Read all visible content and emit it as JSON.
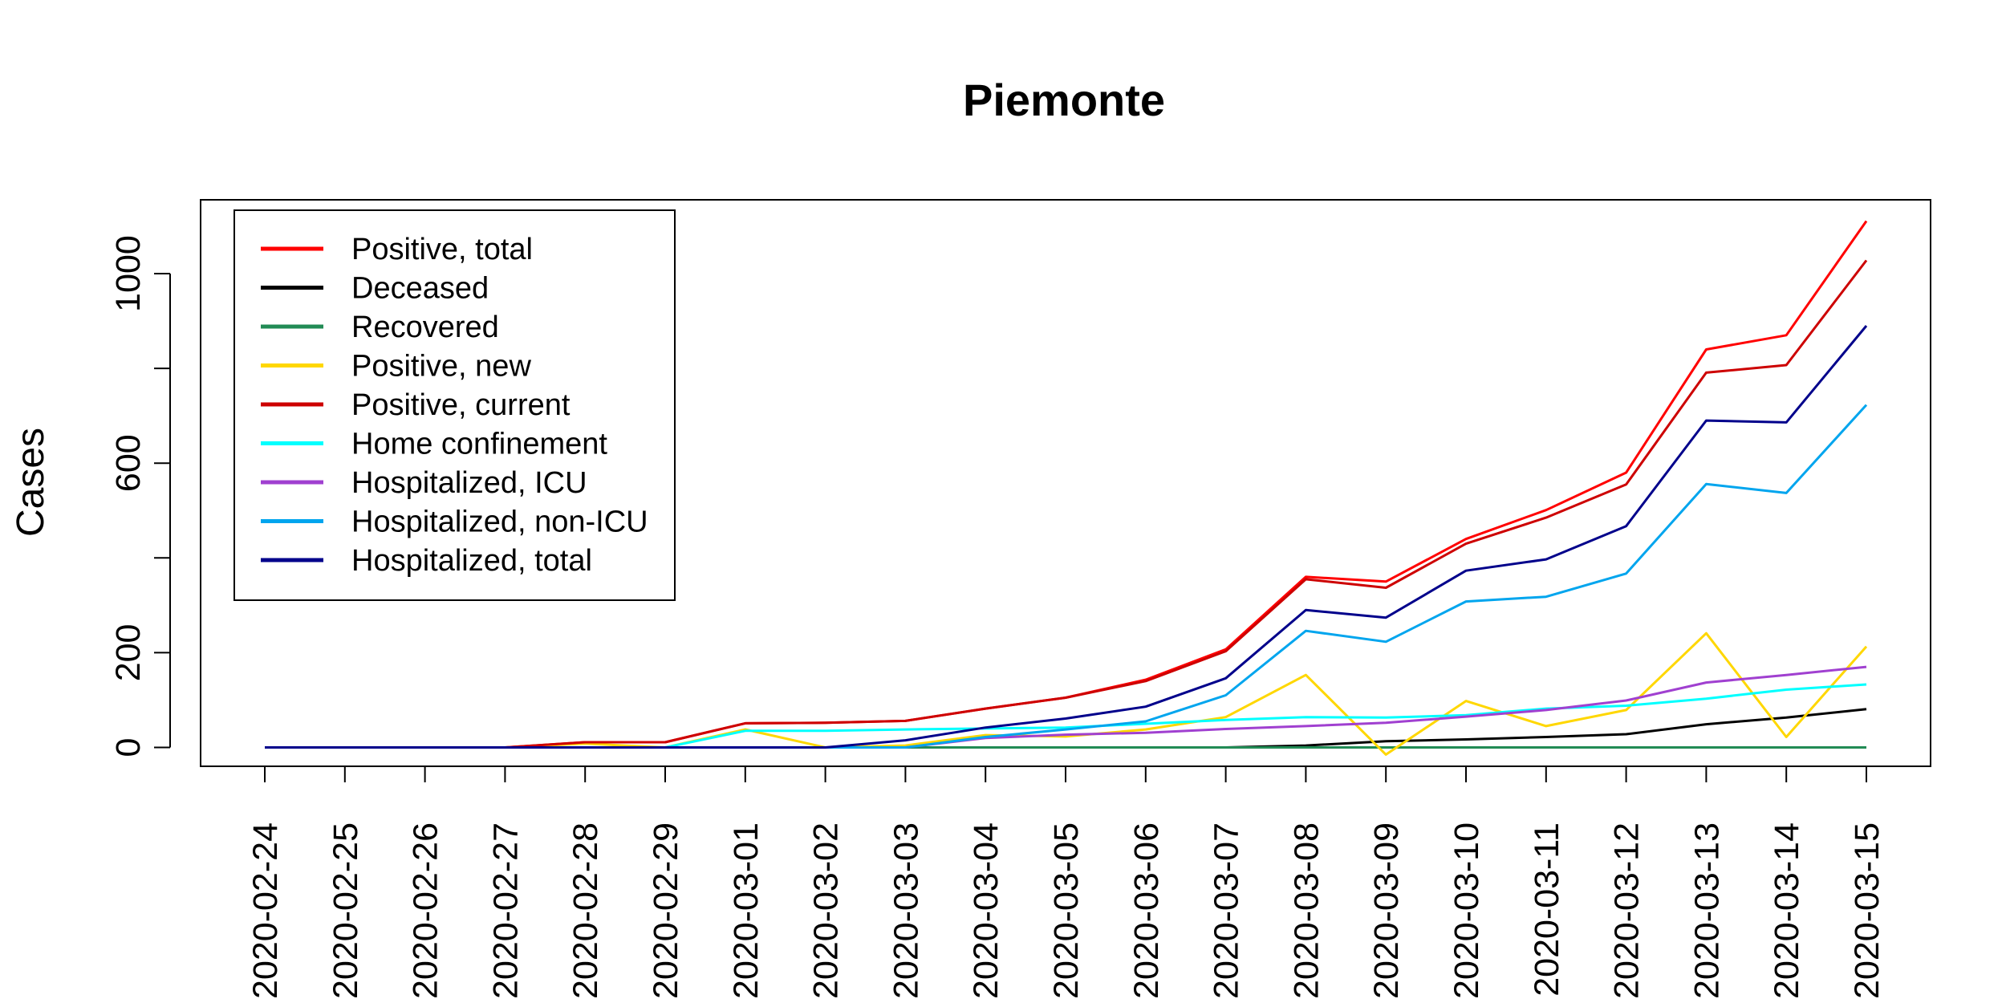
{
  "chart_data": {
    "type": "line",
    "title": "Piemonte",
    "xlabel": "",
    "ylabel": "Cases",
    "x": [
      "2020-02-24",
      "2020-02-25",
      "2020-02-26",
      "2020-02-27",
      "2020-02-28",
      "2020-02-29",
      "2020-03-01",
      "2020-03-02",
      "2020-03-03",
      "2020-03-04",
      "2020-03-05",
      "2020-03-06",
      "2020-03-07",
      "2020-03-08",
      "2020-03-09",
      "2020-03-10",
      "2020-03-11",
      "2020-03-12",
      "2020-03-13",
      "2020-03-14",
      "2020-03-15"
    ],
    "ylim": [
      -40,
      1120
    ],
    "yticks": [
      0,
      200,
      600,
      1000
    ],
    "grid": false,
    "legend_position": "top-left",
    "series": [
      {
        "name": "Positive, total",
        "color": "#ff0000",
        "values": [
          0,
          0,
          0,
          0,
          11,
          11,
          51,
          52,
          56,
          82,
          105,
          143,
          207,
          360,
          350,
          440,
          501,
          580,
          840,
          870,
          1111
        ]
      },
      {
        "name": "Deceased",
        "color": "#000000",
        "values": [
          0,
          0,
          0,
          0,
          0,
          0,
          0,
          0,
          0,
          0,
          0,
          0,
          0,
          4,
          13,
          17,
          22,
          28,
          49,
          63,
          81
        ]
      },
      {
        "name": "Recovered",
        "color": "#228b55",
        "values": [
          0,
          0,
          0,
          0,
          0,
          0,
          0,
          0,
          0,
          0,
          0,
          0,
          0,
          0,
          0,
          0,
          0,
          0,
          0,
          0,
          0
        ]
      },
      {
        "name": "Positive, new",
        "color": "#ffd700",
        "values": [
          0,
          0,
          0,
          0,
          8,
          0,
          38,
          0,
          4,
          26,
          23,
          38,
          64,
          153,
          -15,
          98,
          45,
          79,
          241,
          22,
          213
        ]
      },
      {
        "name": "Positive, current",
        "color": "#cd0000",
        "values": [
          0,
          0,
          0,
          0,
          11,
          11,
          51,
          52,
          56,
          82,
          105,
          140,
          203,
          355,
          337,
          430,
          485,
          555,
          791,
          807,
          1028
        ]
      },
      {
        "name": "Home confinement",
        "color": "#00ffff",
        "values": [
          0,
          0,
          0,
          0,
          0,
          0,
          35,
          35,
          38,
          40,
          42,
          50,
          58,
          64,
          63,
          68,
          82,
          88,
          103,
          122,
          133
        ]
      },
      {
        "name": "Hospitalized, ICU",
        "color": "#a040d0",
        "values": [
          0,
          0,
          0,
          0,
          0,
          0,
          0,
          0,
          0,
          20,
          27,
          31,
          39,
          45,
          52,
          65,
          79,
          99,
          137,
          153,
          170
        ]
      },
      {
        "name": "Hospitalized, non-ICU",
        "color": "#00a5ee",
        "values": [
          0,
          0,
          0,
          0,
          0,
          0,
          0,
          0,
          0,
          22,
          38,
          55,
          110,
          246,
          223,
          308,
          318,
          367,
          556,
          537,
          723
        ]
      },
      {
        "name": "Hospitalized, total",
        "color": "#00008b",
        "values": [
          0,
          0,
          0,
          0,
          0,
          0,
          0,
          0,
          15,
          42,
          61,
          86,
          146,
          290,
          274,
          373,
          397,
          467,
          690,
          686,
          890
        ]
      }
    ]
  }
}
